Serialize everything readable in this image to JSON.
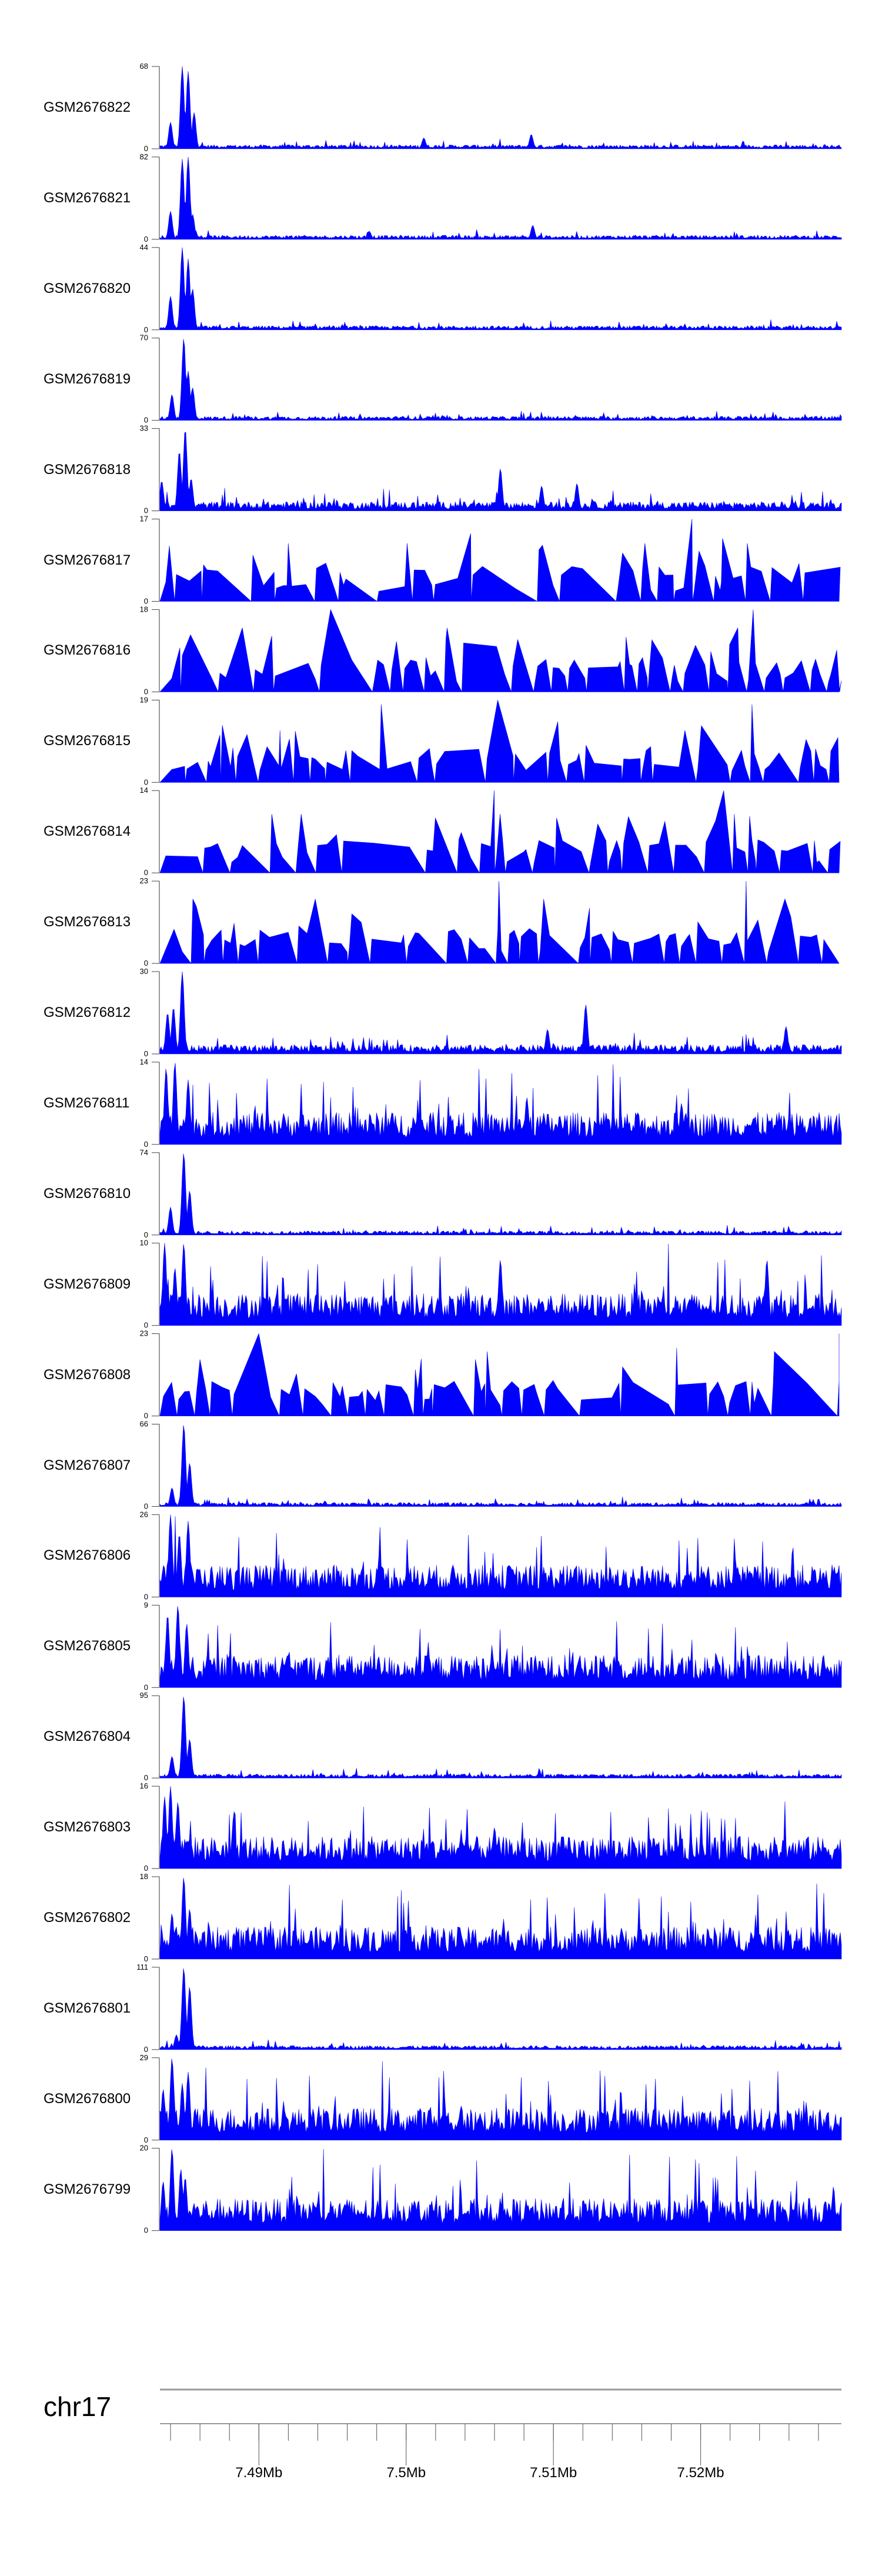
{
  "chart_data": {
    "type": "area",
    "title": "",
    "chromosome": "chr17",
    "xlim_mb": [
      7.48328,
      7.52956
    ],
    "x_ticks": [
      "7.49Mb",
      "7.5Mb",
      "7.51Mb",
      "7.52Mb"
    ],
    "x_tick_values_mb": [
      7.49,
      7.5,
      7.51,
      7.52
    ],
    "fill_color": "#0000ff",
    "axis_color": "#999999",
    "tracks": [
      {
        "name": "GSM2676822",
        "ymax": 68,
        "kind": "promoter",
        "peaks": [
          [
            7.484,
            22
          ],
          [
            7.4848,
            68
          ],
          [
            7.4852,
            64
          ],
          [
            7.4856,
            30
          ],
          [
            7.5085,
            12
          ],
          [
            7.5012,
            9
          ]
        ]
      },
      {
        "name": "GSM2676821",
        "ymax": 82,
        "kind": "promoter",
        "peaks": [
          [
            7.484,
            28
          ],
          [
            7.4848,
            80
          ],
          [
            7.4852,
            82
          ],
          [
            7.4855,
            25
          ],
          [
            7.5086,
            14
          ],
          [
            7.4975,
            8
          ]
        ]
      },
      {
        "name": "GSM2676820",
        "ymax": 44,
        "kind": "promoter",
        "peaks": [
          [
            7.484,
            18
          ],
          [
            7.4848,
            44
          ],
          [
            7.4852,
            38
          ],
          [
            7.4855,
            22
          ]
        ]
      },
      {
        "name": "GSM2676819",
        "ymax": 70,
        "kind": "promoter",
        "peaks": [
          [
            7.4841,
            22
          ],
          [
            7.4849,
            70
          ],
          [
            7.4852,
            42
          ],
          [
            7.4855,
            28
          ]
        ]
      },
      {
        "name": "GSM2676818",
        "ymax": 33,
        "kind": "spiky",
        "peaks": [
          [
            7.4834,
            12
          ],
          [
            7.4846,
            24
          ],
          [
            7.485,
            33
          ],
          [
            7.4854,
            13
          ],
          [
            7.5064,
            17
          ],
          [
            7.5116,
            11
          ],
          [
            7.5092,
            10
          ]
        ]
      },
      {
        "name": "GSM2676817",
        "ymax": 17,
        "kind": "sparse",
        "peaks": [
          [
            7.492,
            12
          ],
          [
            7.5001,
            12
          ],
          [
            7.5044,
            14
          ],
          [
            7.5162,
            12
          ],
          [
            7.5194,
            17
          ],
          [
            7.5215,
            13
          ],
          [
            7.5232,
            12
          ]
        ]
      },
      {
        "name": "GSM2676816",
        "ymax": 18,
        "kind": "sparse",
        "peaks": [
          [
            7.4889,
            14
          ],
          [
            7.4949,
            18
          ],
          [
            7.5028,
            14
          ],
          [
            7.5149,
            12
          ],
          [
            7.5236,
            18
          ],
          [
            7.5225,
            14
          ]
        ]
      },
      {
        "name": "GSM2676815",
        "ymax": 19,
        "kind": "sparse",
        "peaks": [
          [
            7.4914,
            12
          ],
          [
            7.4983,
            18
          ],
          [
            7.5062,
            19
          ],
          [
            7.5103,
            14
          ],
          [
            7.5189,
            12
          ],
          [
            7.5235,
            18
          ]
        ]
      },
      {
        "name": "GSM2676814",
        "ymax": 14,
        "kind": "sparse",
        "peaks": [
          [
            7.4909,
            10
          ],
          [
            7.4929,
            10
          ],
          [
            7.506,
            14
          ],
          [
            7.5064,
            10
          ],
          [
            7.5216,
            14
          ],
          [
            7.5223,
            10
          ]
        ]
      },
      {
        "name": "GSM2676813",
        "ymax": 23,
        "kind": "sparse",
        "peaks": [
          [
            7.4855,
            18
          ],
          [
            7.4938,
            18
          ],
          [
            7.5063,
            23
          ],
          [
            7.5093,
            18
          ],
          [
            7.5231,
            23
          ],
          [
            7.5257,
            18
          ]
        ]
      },
      {
        "name": "GSM2676812",
        "ymax": 30,
        "kind": "spiky",
        "peaks": [
          [
            7.4838,
            15
          ],
          [
            7.4842,
            17
          ],
          [
            7.4848,
            30
          ],
          [
            7.5096,
            9
          ],
          [
            7.5122,
            18
          ],
          [
            7.5258,
            10
          ]
        ]
      },
      {
        "name": "GSM2676811",
        "ymax": 14,
        "kind": "dense",
        "peaks": [
          [
            7.4837,
            13
          ],
          [
            7.4843,
            14
          ],
          [
            7.4852,
            11
          ],
          [
            7.5082,
            8
          ],
          [
            7.5187,
            7
          ]
        ]
      },
      {
        "name": "GSM2676810",
        "ymax": 74,
        "kind": "promoter",
        "peaks": [
          [
            7.484,
            25
          ],
          [
            7.4849,
            74
          ],
          [
            7.4853,
            40
          ]
        ]
      },
      {
        "name": "GSM2676809",
        "ymax": 10,
        "kind": "dense",
        "peaks": [
          [
            7.4836,
            10
          ],
          [
            7.4843,
            7
          ],
          [
            7.4849,
            10
          ],
          [
            7.5064,
            8
          ],
          [
            7.5245,
            8
          ]
        ]
      },
      {
        "name": "GSM2676808",
        "ymax": 23,
        "kind": "sparse",
        "peaks": [
          [
            7.49,
            23
          ],
          [
            7.5055,
            18
          ],
          [
            7.5184,
            19
          ],
          [
            7.525,
            18
          ],
          [
            7.5294,
            23
          ]
        ]
      },
      {
        "name": "GSM2676807",
        "ymax": 66,
        "kind": "promoter",
        "peaks": [
          [
            7.4841,
            15
          ],
          [
            7.4849,
            66
          ],
          [
            7.4853,
            35
          ]
        ]
      },
      {
        "name": "GSM2676806",
        "ymax": 26,
        "kind": "dense",
        "peaks": [
          [
            7.484,
            26
          ],
          [
            7.4846,
            20
          ],
          [
            7.4852,
            24
          ],
          [
            7.507,
            10
          ]
        ]
      },
      {
        "name": "GSM2676805",
        "ymax": 9,
        "kind": "dense",
        "peaks": [
          [
            7.4838,
            8
          ],
          [
            7.4845,
            9
          ],
          [
            7.4851,
            7
          ]
        ]
      },
      {
        "name": "GSM2676804",
        "ymax": 95,
        "kind": "promoter",
        "peaks": [
          [
            7.4841,
            25
          ],
          [
            7.4849,
            95
          ],
          [
            7.4853,
            45
          ]
        ]
      },
      {
        "name": "GSM2676803",
        "ymax": 16,
        "kind": "dense",
        "peaks": [
          [
            7.4836,
            14
          ],
          [
            7.484,
            16
          ],
          [
            7.4845,
            13
          ],
          [
            7.506,
            8
          ]
        ]
      },
      {
        "name": "GSM2676802",
        "ymax": 18,
        "kind": "dense",
        "peaks": [
          [
            7.4841,
            10
          ],
          [
            7.4849,
            18
          ],
          [
            7.4853,
            11
          ]
        ]
      },
      {
        "name": "GSM2676801",
        "ymax": 111,
        "kind": "promoter",
        "peaks": [
          [
            7.4844,
            20
          ],
          [
            7.4849,
            111
          ],
          [
            7.4853,
            85
          ]
        ]
      },
      {
        "name": "GSM2676800",
        "ymax": 29,
        "kind": "dense",
        "peaks": [
          [
            7.4835,
            18
          ],
          [
            7.4841,
            29
          ],
          [
            7.4848,
            20
          ],
          [
            7.4852,
            24
          ]
        ]
      },
      {
        "name": "GSM2676799",
        "ymax": 20,
        "kind": "dense",
        "peaks": [
          [
            7.4835,
            12
          ],
          [
            7.4841,
            20
          ],
          [
            7.4847,
            15
          ],
          [
            7.485,
            13
          ]
        ]
      }
    ]
  }
}
